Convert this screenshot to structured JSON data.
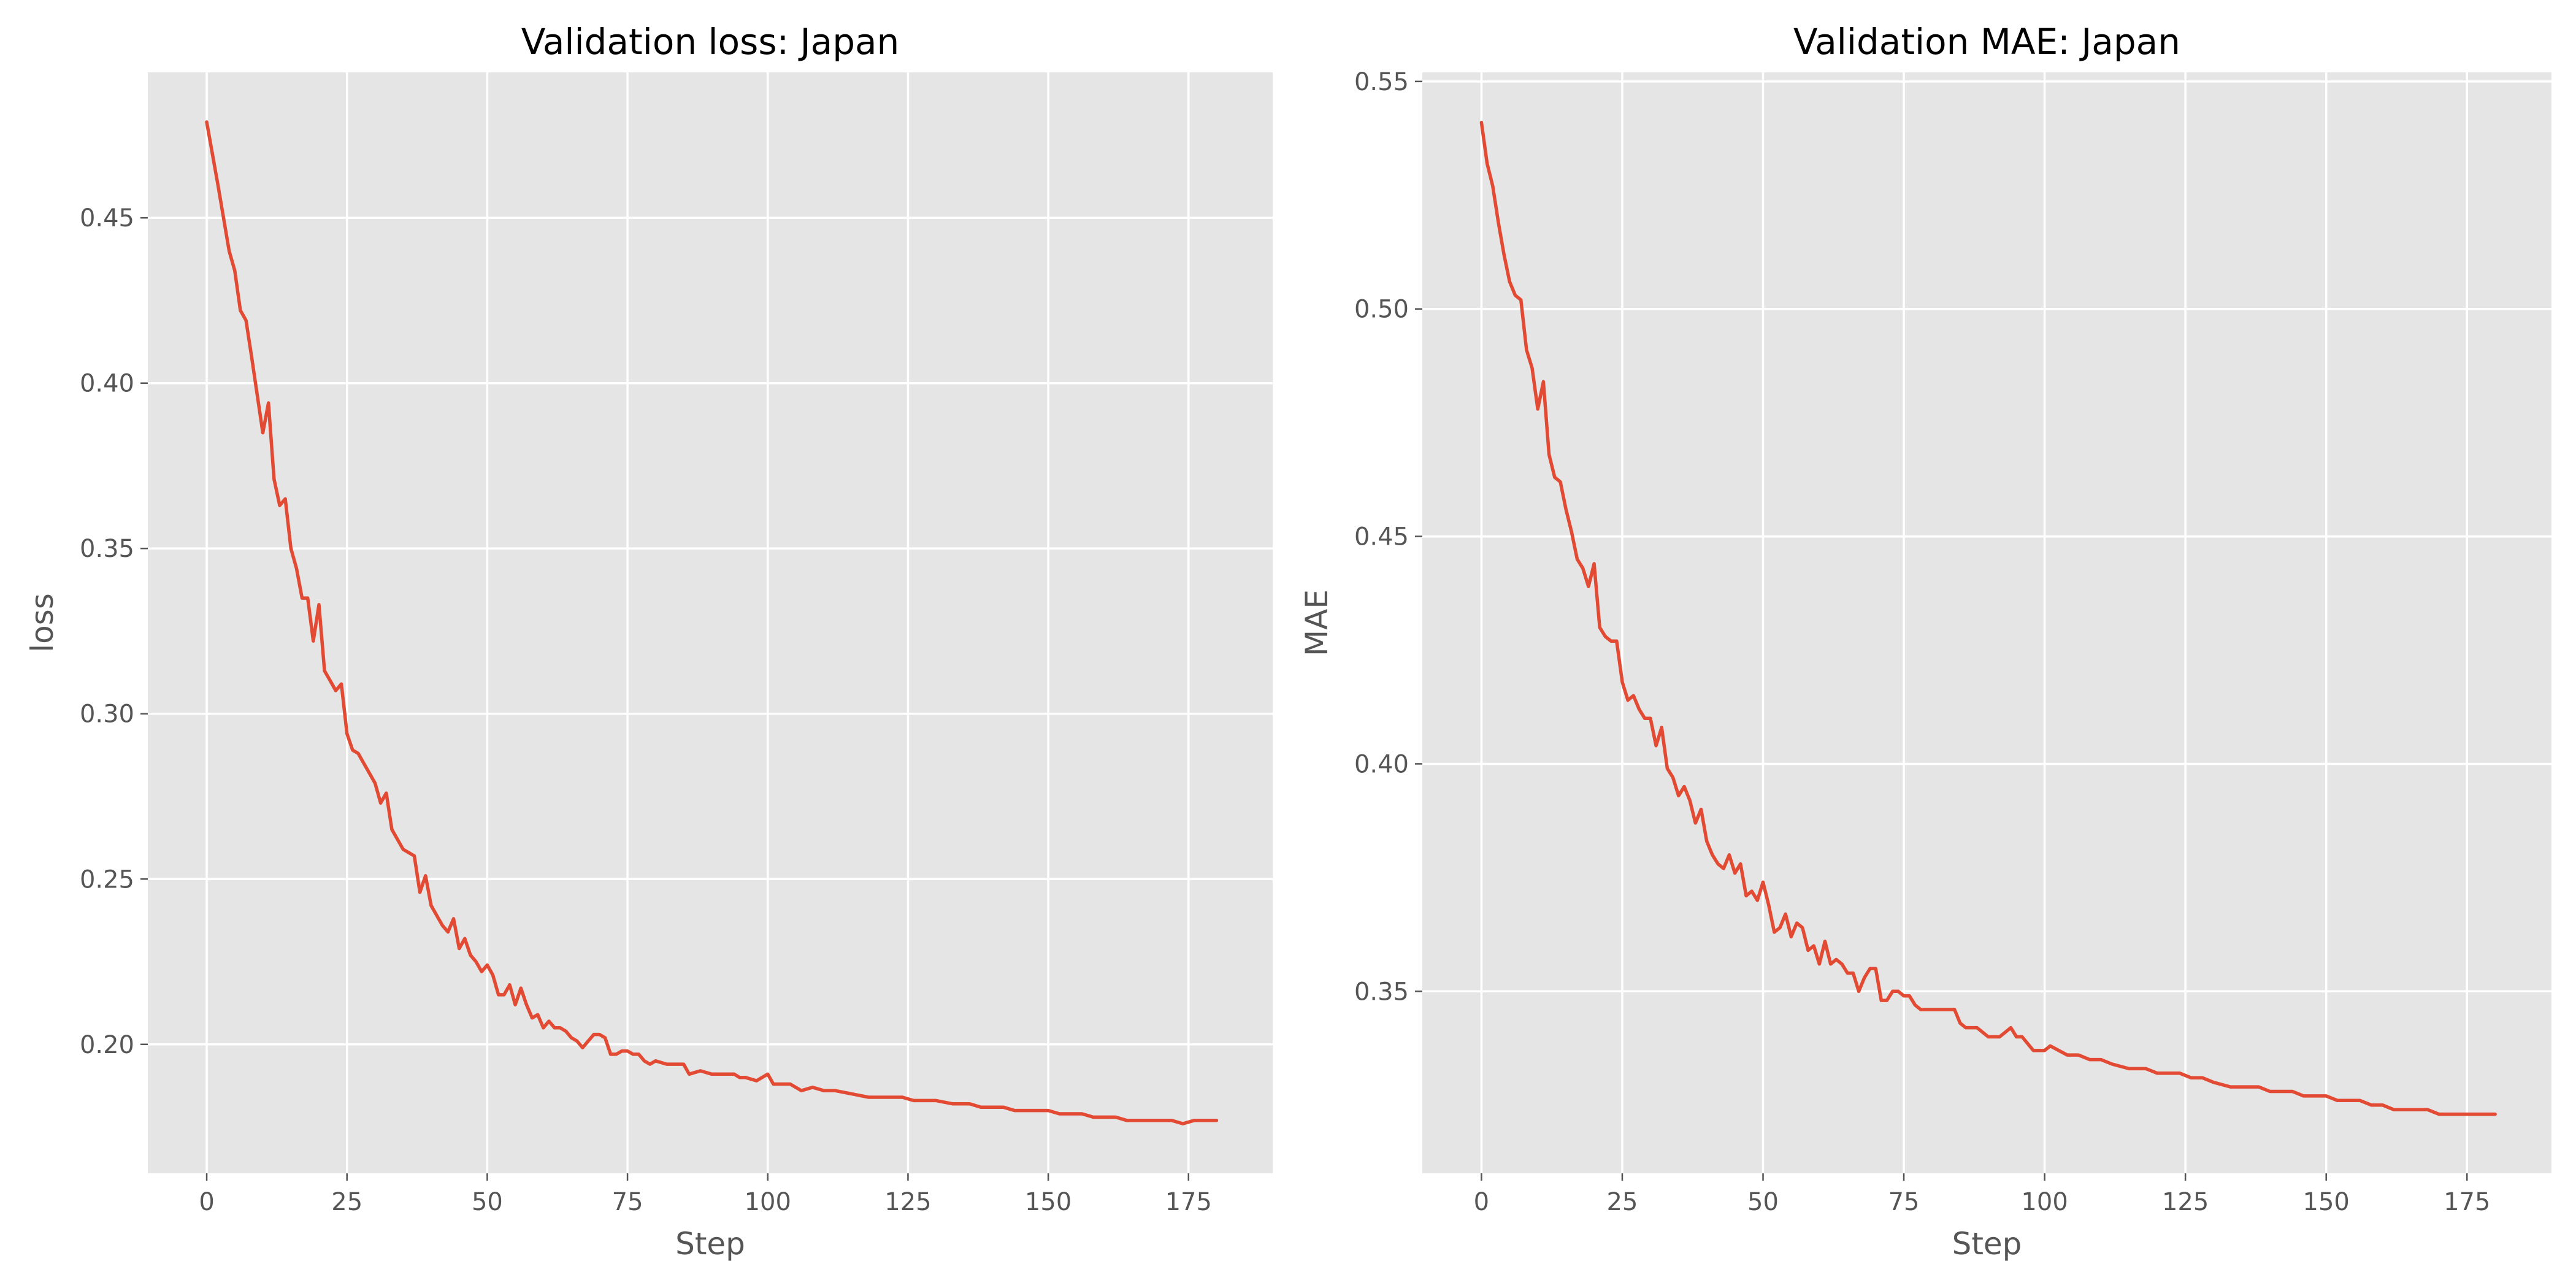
{
  "figure": {
    "background": "#ffffff",
    "plot_background": "#e5e5e5",
    "grid_color": "#ffffff",
    "line_color": "#e24a33"
  },
  "chart_data": [
    {
      "type": "line",
      "title": "Validation loss: Japan",
      "xlabel": "Step",
      "ylabel": "loss",
      "xlim": [
        -10.5,
        190
      ],
      "ylim": [
        0.161,
        0.494
      ],
      "xticks": [
        0,
        25,
        50,
        75,
        100,
        125,
        150,
        175
      ],
      "xtick_labels": [
        "0",
        "25",
        "50",
        "75",
        "100",
        "125",
        "150",
        "175"
      ],
      "yticks": [
        0.2,
        0.25,
        0.3,
        0.35,
        0.4,
        0.45
      ],
      "ytick_labels": [
        "0.20",
        "0.25",
        "0.30",
        "0.35",
        "0.40",
        "0.45"
      ],
      "grid": true,
      "series": [
        {
          "color": "#e24a33",
          "x": [
            0,
            2,
            4,
            5,
            6,
            7,
            8,
            10,
            11,
            12,
            13,
            14,
            15,
            16,
            17,
            18,
            19,
            20,
            21,
            22,
            23,
            24,
            25,
            26,
            27,
            28,
            30,
            31,
            32,
            33,
            35,
            37,
            38,
            39,
            40,
            42,
            43,
            44,
            45,
            46,
            47,
            48,
            49,
            50,
            51,
            52,
            53,
            54,
            55,
            56,
            57,
            58,
            59,
            60,
            61,
            62,
            63,
            64,
            65,
            66,
            67,
            68,
            69,
            70,
            71,
            72,
            73,
            74,
            75,
            76,
            77,
            78,
            79,
            80,
            82,
            84,
            85,
            86,
            88,
            90,
            92,
            94,
            95,
            96,
            98,
            100,
            101,
            104,
            106,
            108,
            110,
            112,
            115,
            118,
            120,
            122,
            124,
            126,
            128,
            130,
            133,
            136,
            138,
            140,
            142,
            144,
            146,
            148,
            150,
            152,
            154,
            156,
            158,
            160,
            162,
            164,
            166,
            168,
            170,
            172,
            174,
            176,
            178,
            180
          ],
          "y": [
            0.479,
            0.46,
            0.44,
            0.434,
            0.422,
            0.419,
            0.408,
            0.385,
            0.394,
            0.371,
            0.363,
            0.365,
            0.35,
            0.344,
            0.335,
            0.335,
            0.322,
            0.333,
            0.313,
            0.31,
            0.307,
            0.309,
            0.294,
            0.289,
            0.288,
            0.285,
            0.279,
            0.273,
            0.276,
            0.265,
            0.259,
            0.257,
            0.246,
            0.251,
            0.242,
            0.236,
            0.234,
            0.238,
            0.229,
            0.232,
            0.227,
            0.225,
            0.222,
            0.224,
            0.221,
            0.215,
            0.215,
            0.218,
            0.212,
            0.217,
            0.212,
            0.208,
            0.209,
            0.205,
            0.207,
            0.205,
            0.205,
            0.204,
            0.202,
            0.201,
            0.199,
            0.201,
            0.203,
            0.203,
            0.202,
            0.197,
            0.197,
            0.198,
            0.198,
            0.197,
            0.197,
            0.195,
            0.194,
            0.195,
            0.194,
            0.194,
            0.194,
            0.191,
            0.192,
            0.191,
            0.191,
            0.191,
            0.19,
            0.19,
            0.189,
            0.191,
            0.188,
            0.188,
            0.186,
            0.187,
            0.186,
            0.186,
            0.185,
            0.184,
            0.184,
            0.184,
            0.184,
            0.183,
            0.183,
            0.183,
            0.182,
            0.182,
            0.181,
            0.181,
            0.181,
            0.18,
            0.18,
            0.18,
            0.18,
            0.179,
            0.179,
            0.179,
            0.178,
            0.178,
            0.178,
            0.177,
            0.177,
            0.177,
            0.177,
            0.177,
            0.176,
            0.177,
            0.177,
            0.177
          ]
        }
      ]
    },
    {
      "type": "line",
      "title": "Validation MAE: Japan",
      "xlabel": "Step",
      "ylabel": "MAE",
      "xlim": [
        -10.5,
        190
      ],
      "ylim": [
        0.31,
        0.552
      ],
      "xticks": [
        0,
        25,
        50,
        75,
        100,
        125,
        150,
        175
      ],
      "xtick_labels": [
        "0",
        "25",
        "50",
        "75",
        "100",
        "125",
        "150",
        "175"
      ],
      "yticks": [
        0.35,
        0.4,
        0.45,
        0.5,
        0.55
      ],
      "ytick_labels": [
        "0.35",
        "0.40",
        "0.45",
        "0.50",
        "0.55"
      ],
      "grid": true,
      "series": [
        {
          "color": "#e24a33",
          "x": [
            0,
            1,
            2,
            3,
            4,
            5,
            6,
            7,
            8,
            9,
            10,
            11,
            12,
            13,
            14,
            15,
            16,
            17,
            18,
            19,
            20,
            21,
            22,
            23,
            24,
            25,
            26,
            27,
            28,
            29,
            30,
            31,
            32,
            33,
            34,
            35,
            36,
            37,
            38,
            39,
            40,
            41,
            42,
            43,
            44,
            45,
            46,
            47,
            48,
            49,
            50,
            51,
            52,
            53,
            54,
            55,
            56,
            57,
            58,
            59,
            60,
            61,
            62,
            63,
            64,
            65,
            66,
            67,
            68,
            69,
            70,
            71,
            72,
            73,
            74,
            75,
            76,
            77,
            78,
            80,
            82,
            84,
            85,
            86,
            88,
            90,
            92,
            94,
            95,
            96,
            98,
            100,
            101,
            104,
            106,
            108,
            110,
            112,
            115,
            118,
            120,
            122,
            124,
            126,
            128,
            130,
            133,
            136,
            138,
            140,
            142,
            144,
            146,
            148,
            150,
            152,
            154,
            156,
            158,
            160,
            162,
            164,
            166,
            168,
            170,
            172,
            174,
            176,
            178,
            180
          ],
          "y": [
            0.541,
            0.532,
            0.527,
            0.519,
            0.512,
            0.506,
            0.503,
            0.502,
            0.491,
            0.487,
            0.478,
            0.484,
            0.468,
            0.463,
            0.462,
            0.456,
            0.451,
            0.445,
            0.443,
            0.439,
            0.444,
            0.43,
            0.428,
            0.427,
            0.427,
            0.418,
            0.414,
            0.415,
            0.412,
            0.41,
            0.41,
            0.404,
            0.408,
            0.399,
            0.397,
            0.393,
            0.395,
            0.392,
            0.387,
            0.39,
            0.383,
            0.38,
            0.378,
            0.377,
            0.38,
            0.376,
            0.378,
            0.371,
            0.372,
            0.37,
            0.374,
            0.369,
            0.363,
            0.364,
            0.367,
            0.362,
            0.365,
            0.364,
            0.359,
            0.36,
            0.356,
            0.361,
            0.356,
            0.357,
            0.356,
            0.354,
            0.354,
            0.35,
            0.353,
            0.355,
            0.355,
            0.348,
            0.348,
            0.35,
            0.35,
            0.349,
            0.349,
            0.347,
            0.346,
            0.346,
            0.346,
            0.346,
            0.343,
            0.342,
            0.342,
            0.34,
            0.34,
            0.342,
            0.34,
            0.34,
            0.337,
            0.337,
            0.338,
            0.336,
            0.336,
            0.335,
            0.335,
            0.334,
            0.333,
            0.333,
            0.332,
            0.332,
            0.332,
            0.331,
            0.331,
            0.33,
            0.329,
            0.329,
            0.329,
            0.328,
            0.328,
            0.328,
            0.327,
            0.327,
            0.327,
            0.326,
            0.326,
            0.326,
            0.325,
            0.325,
            0.324,
            0.324,
            0.324,
            0.324,
            0.323,
            0.323,
            0.323,
            0.323,
            0.323,
            0.323
          ]
        }
      ]
    }
  ]
}
